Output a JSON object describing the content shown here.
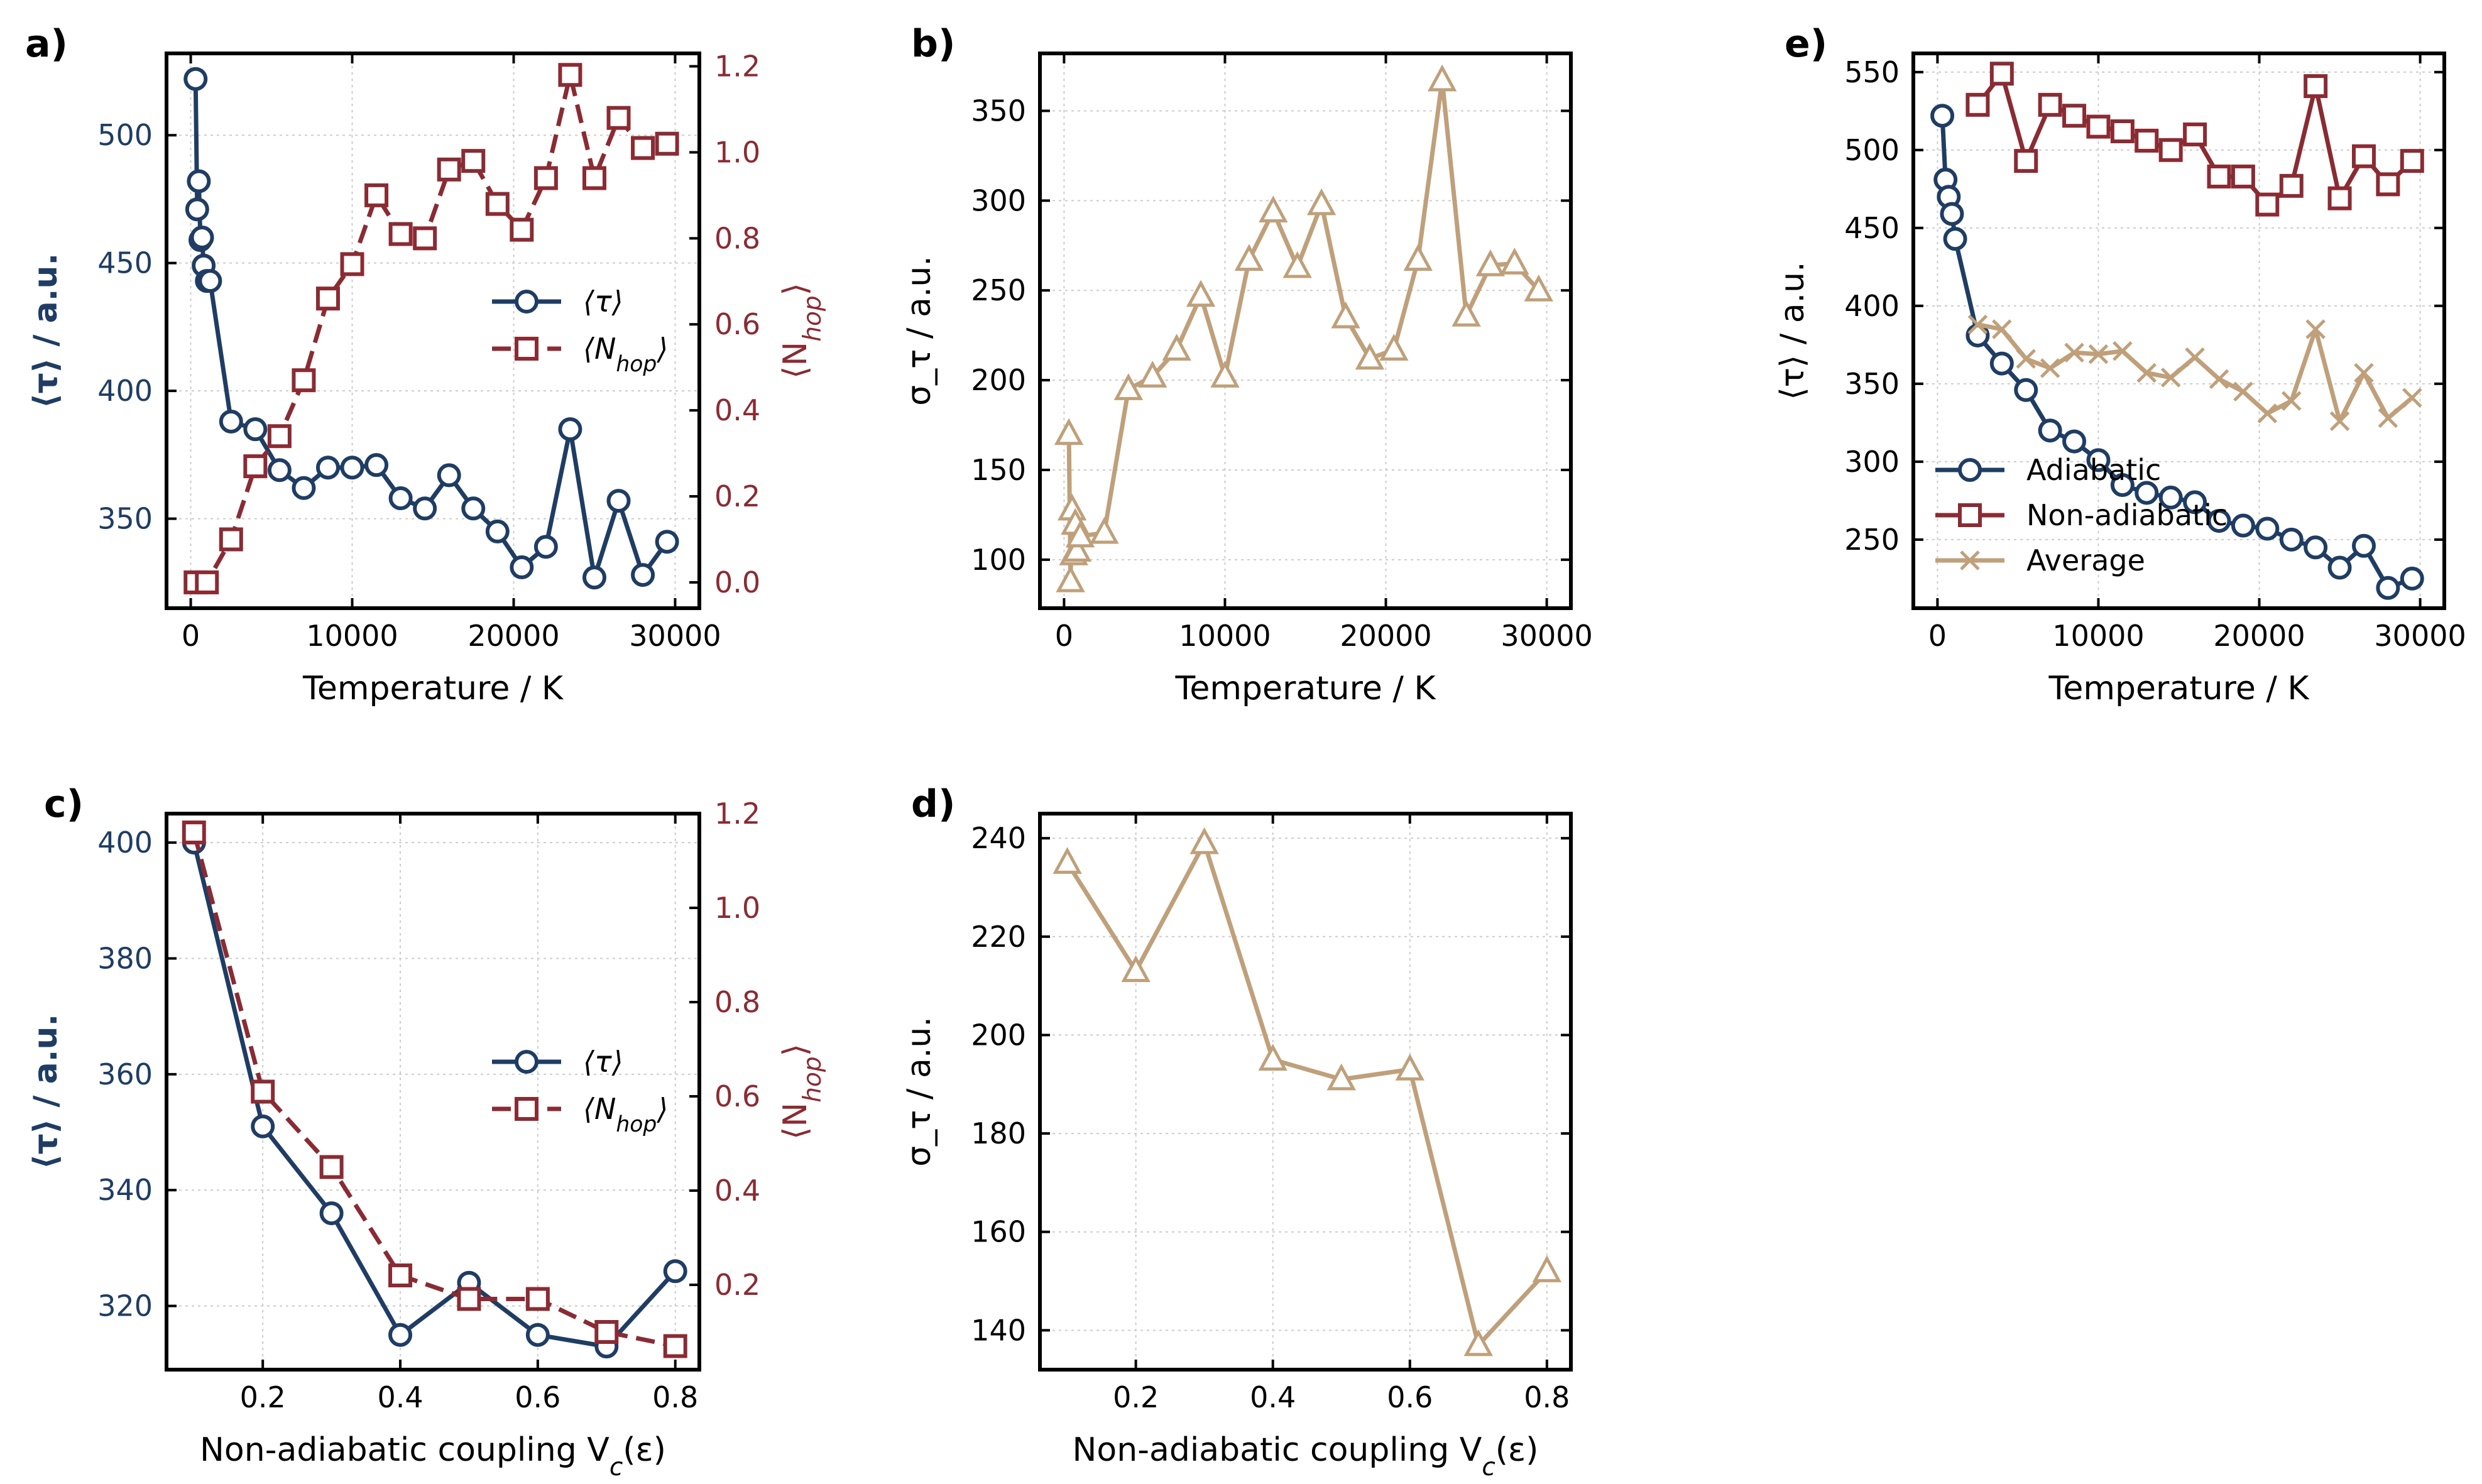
{
  "colors": {
    "blue": "#1f3d64",
    "red": "#8a2b33",
    "tan": "#bfa07a",
    "grid": "#cccccc",
    "black": "#000000"
  },
  "chart_data": [
    {
      "type": "line",
      "panel": "a)",
      "title": "",
      "xlabel": "Temperature / K",
      "ylabel": "⟨τ⟩ / a.u.",
      "y2label": "⟨N_hop⟩",
      "xlim": [
        -1500,
        31500
      ],
      "ylim": [
        315,
        532
      ],
      "y2lim": [
        -0.06,
        1.23
      ],
      "xticks": [
        0,
        10000,
        20000,
        30000
      ],
      "xticklabels": [
        "0",
        "10000",
        "20000",
        "30000"
      ],
      "yticks": [
        350,
        400,
        450,
        500
      ],
      "yticklabels": [
        "350",
        "400",
        "450",
        "500"
      ],
      "y2ticks": [
        0.0,
        0.2,
        0.4,
        0.6,
        0.8,
        1.0,
        1.2
      ],
      "y2ticklabels": [
        "0.0",
        "0.2",
        "0.4",
        "0.6",
        "0.8",
        "1.0",
        "1.2"
      ],
      "legend": "center-right",
      "series": [
        {
          "name": "⟨τ⟩",
          "axis": "left",
          "color": "blue",
          "marker": "circle",
          "dash": false,
          "x": [
            300,
            400,
            500,
            600,
            700,
            800,
            1000,
            1200,
            2500,
            4000,
            5500,
            7000,
            8500,
            10000,
            11500,
            13000,
            14500,
            16000,
            17500,
            19000,
            20500,
            22000,
            23500,
            25000,
            26500,
            28000,
            29500
          ],
          "y": [
            522,
            471,
            482,
            459,
            460,
            449,
            443,
            443,
            388,
            385,
            369,
            362,
            370,
            370,
            371,
            358,
            354,
            367,
            354,
            345,
            331,
            339,
            385,
            327,
            357,
            328,
            341
          ]
        },
        {
          "name": "⟨N_hop⟩",
          "axis": "right",
          "color": "red",
          "marker": "square",
          "dash": true,
          "x": [
            300,
            1000,
            2500,
            4000,
            5500,
            7000,
            8500,
            10000,
            11500,
            13000,
            14500,
            16000,
            17500,
            19000,
            20500,
            22000,
            23500,
            25000,
            26500,
            28000,
            29500
          ],
          "y": [
            0.0,
            0.0,
            0.1,
            0.27,
            0.34,
            0.47,
            0.66,
            0.74,
            0.9,
            0.81,
            0.8,
            0.96,
            0.98,
            0.88,
            0.82,
            0.94,
            1.18,
            0.94,
            1.08,
            1.01,
            1.02
          ]
        }
      ]
    },
    {
      "type": "line",
      "panel": "b)",
      "title": "",
      "xlabel": "Temperature / K",
      "ylabel": "σ_τ / a.u.",
      "xlim": [
        -1500,
        31500
      ],
      "ylim": [
        73,
        382
      ],
      "xticks": [
        0,
        10000,
        20000,
        30000
      ],
      "xticklabels": [
        "0",
        "10000",
        "20000",
        "30000"
      ],
      "yticks": [
        100,
        150,
        200,
        250,
        300,
        350
      ],
      "yticklabels": [
        "100",
        "150",
        "200",
        "250",
        "300",
        "350"
      ],
      "series": [
        {
          "name": "σ_τ",
          "color": "tan",
          "marker": "triangle",
          "dash": false,
          "x": [
            300,
            400,
            500,
            600,
            700,
            800,
            1000,
            2500,
            4000,
            5500,
            7000,
            8500,
            10000,
            11500,
            13000,
            14500,
            16000,
            17500,
            19000,
            20500,
            22000,
            23500,
            25000,
            26500,
            28000,
            29500
          ],
          "y": [
            170,
            88,
            128,
            103,
            120,
            105,
            113,
            115,
            195,
            202,
            217,
            247,
            202,
            267,
            294,
            263,
            298,
            235,
            212,
            217,
            267,
            367,
            236,
            264,
            265,
            250
          ]
        }
      ]
    },
    {
      "type": "line",
      "panel": "c)",
      "title": "",
      "xlabel": "Non-adiabatic coupling V_c(ε)",
      "ylabel": "⟨τ⟩ / a.u.",
      "y2label": "⟨N_hop⟩",
      "xlim": [
        0.06,
        0.835
      ],
      "ylim": [
        309,
        405
      ],
      "y2lim": [
        0.02,
        1.2
      ],
      "xticks": [
        0.2,
        0.4,
        0.6,
        0.8
      ],
      "xticklabels": [
        "0.2",
        "0.4",
        "0.6",
        "0.8"
      ],
      "yticks": [
        320,
        340,
        360,
        380,
        400
      ],
      "yticklabels": [
        "320",
        "340",
        "360",
        "380",
        "400"
      ],
      "y2ticks": [
        0.2,
        0.4,
        0.6,
        0.8,
        1.0,
        1.2
      ],
      "y2ticklabels": [
        "0.2",
        "0.4",
        "0.6",
        "0.8",
        "1.0",
        "1.2"
      ],
      "legend": "center-right",
      "series": [
        {
          "name": "⟨τ⟩",
          "axis": "left",
          "color": "blue",
          "marker": "circle",
          "dash": false,
          "x": [
            0.1,
            0.2,
            0.3,
            0.4,
            0.5,
            0.6,
            0.7,
            0.8
          ],
          "y": [
            400,
            351,
            336,
            315,
            324,
            315,
            313,
            326
          ]
        },
        {
          "name": "⟨N_hop⟩",
          "axis": "right",
          "color": "red",
          "marker": "square",
          "dash": true,
          "x": [
            0.1,
            0.2,
            0.3,
            0.4,
            0.5,
            0.6,
            0.7,
            0.8
          ],
          "y": [
            1.16,
            0.61,
            0.45,
            0.22,
            0.17,
            0.17,
            0.1,
            0.07
          ]
        }
      ]
    },
    {
      "type": "line",
      "panel": "d)",
      "title": "",
      "xlabel": "Non-adiabatic coupling V_c(ε)",
      "ylabel": "σ_τ / a.u.",
      "xlim": [
        0.06,
        0.835
      ],
      "ylim": [
        132,
        245
      ],
      "xticks": [
        0.2,
        0.4,
        0.6,
        0.8
      ],
      "xticklabels": [
        "0.2",
        "0.4",
        "0.6",
        "0.8"
      ],
      "yticks": [
        140,
        160,
        180,
        200,
        220,
        240
      ],
      "yticklabels": [
        "140",
        "160",
        "180",
        "200",
        "220",
        "240"
      ],
      "series": [
        {
          "name": "σ_τ",
          "color": "tan",
          "marker": "triangle",
          "dash": false,
          "x": [
            0.1,
            0.2,
            0.3,
            0.4,
            0.5,
            0.6,
            0.7,
            0.8
          ],
          "y": [
            235,
            213,
            239,
            195,
            191,
            193,
            137,
            152
          ]
        }
      ]
    },
    {
      "type": "line",
      "panel": "e)",
      "title": "",
      "xlabel": "Temperature / K",
      "ylabel": "⟨τ⟩ / a.u.",
      "xlim": [
        -1500,
        31500
      ],
      "ylim": [
        206,
        562
      ],
      "xticks": [
        0,
        10000,
        20000,
        30000
      ],
      "xticklabels": [
        "0",
        "10000",
        "20000",
        "30000"
      ],
      "yticks": [
        250,
        300,
        350,
        400,
        450,
        500,
        550
      ],
      "yticklabels": [
        "250",
        "300",
        "350",
        "400",
        "450",
        "500",
        "550"
      ],
      "legend": "lower-left",
      "series": [
        {
          "name": "Adiabatic",
          "color": "blue",
          "marker": "circle",
          "dash": false,
          "x": [
            300,
            500,
            700,
            900,
            1100,
            2500,
            4000,
            5500,
            7000,
            8500,
            10000,
            11500,
            13000,
            14500,
            16000,
            17500,
            19000,
            20500,
            22000,
            23500,
            25000,
            26500,
            28000,
            29500
          ],
          "y": [
            522,
            481,
            470,
            459,
            443,
            381,
            363,
            346,
            320,
            313,
            301,
            285,
            280,
            277,
            274,
            262,
            259,
            257,
            250,
            245,
            232,
            246,
            219,
            225
          ]
        },
        {
          "name": "Non-adiabatic",
          "color": "red",
          "marker": "square",
          "dash": false,
          "x": [
            2500,
            4000,
            5500,
            7000,
            8500,
            10000,
            11500,
            13000,
            14500,
            16000,
            17500,
            19000,
            20500,
            22000,
            23500,
            25000,
            26500,
            28000,
            29500
          ],
          "y": [
            529,
            549,
            493,
            529,
            522,
            515,
            512,
            506,
            500,
            510,
            483,
            483,
            465,
            477,
            541,
            469,
            496,
            478,
            493
          ]
        },
        {
          "name": "Average",
          "color": "tan",
          "marker": "x",
          "dash": false,
          "x": [
            2500,
            4000,
            5500,
            7000,
            8500,
            10000,
            11500,
            13000,
            14500,
            16000,
            17500,
            19000,
            20500,
            22000,
            23500,
            25000,
            26500,
            28000,
            29500
          ],
          "y": [
            388,
            385,
            366,
            360,
            370,
            369,
            371,
            357,
            354,
            367,
            353,
            345,
            331,
            339,
            385,
            326,
            357,
            328,
            341
          ]
        }
      ]
    }
  ]
}
